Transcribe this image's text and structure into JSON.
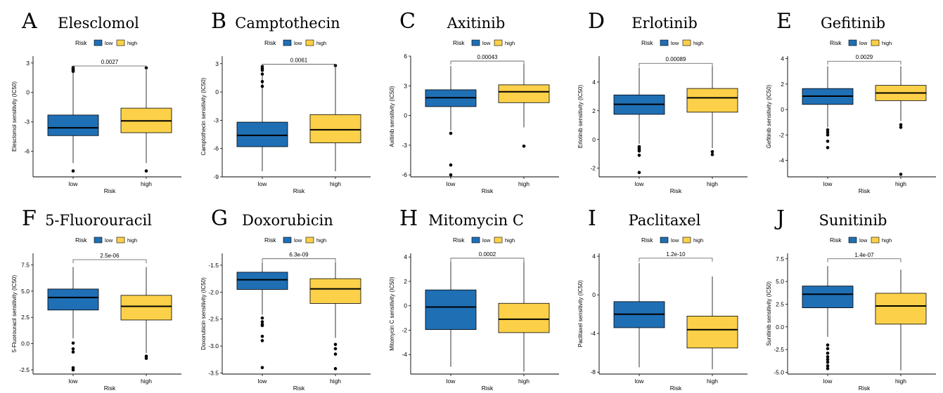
{
  "legend": {
    "title": "Risk",
    "labels": [
      "low",
      "high"
    ]
  },
  "colors": {
    "low": "#1f6fb5",
    "high": "#fcd149",
    "axis": "#000000",
    "bracket": "#555555"
  },
  "chart_data": [
    {
      "type": "box",
      "letter": "A",
      "title": "Elesclomol",
      "xlabel": "Risk",
      "ylabel": "Elesclomol sensitivity (IC50)",
      "categories": [
        "low",
        "high"
      ],
      "ylim": [
        -8.6,
        3.7
      ],
      "yticks": [
        -6,
        -3,
        0,
        3
      ],
      "ytick_labels": [
        "-6",
        "-3",
        "0",
        "3"
      ],
      "pvalue": "0.0027",
      "bracket_y": 2.7,
      "boxes": [
        {
          "whisker_low": -7.2,
          "q1": -4.4,
          "median": -3.6,
          "q3": -2.3,
          "whisker_high": 2.1,
          "outliers": [
            -8.0,
            2.15,
            2.3,
            2.4,
            2.55
          ]
        },
        {
          "whisker_low": -7.2,
          "q1": -4.1,
          "median": -2.9,
          "q3": -1.6,
          "whisker_high": 2.3,
          "outliers": [
            -8.0,
            2.5
          ]
        }
      ]
    },
    {
      "type": "box",
      "letter": "B",
      "title": "Camptothecin",
      "xlabel": "Risk",
      "ylabel": "Camptothecin sensitivity (IC50)",
      "categories": [
        "low",
        "high"
      ],
      "ylim": [
        -9.0,
        3.8
      ],
      "yticks": [
        -9,
        -6,
        -3,
        0,
        3
      ],
      "ytick_labels": [
        "-9",
        "-6",
        "-3",
        "0",
        "3"
      ],
      "pvalue": "0.0061",
      "bracket_y": 2.95,
      "boxes": [
        {
          "whisker_low": -8.4,
          "q1": -5.8,
          "median": -4.6,
          "q3": -3.2,
          "whisker_high": 2.0,
          "outliers": [
            0.6,
            1.1,
            1.9,
            2.3,
            2.5,
            2.7
          ]
        },
        {
          "whisker_low": -8.4,
          "q1": -5.4,
          "median": -4.0,
          "q3": -2.4,
          "whisker_high": 2.6,
          "outliers": [
            2.8
          ]
        }
      ]
    },
    {
      "type": "box",
      "letter": "C",
      "title": "Axitinib",
      "xlabel": "Risk",
      "ylabel": "Axitinib sensitivity (IC50)",
      "categories": [
        "low",
        "high"
      ],
      "ylim": [
        -6.2,
        6.0
      ],
      "yticks": [
        -6,
        -3,
        0,
        3,
        6
      ],
      "ytick_labels": [
        "-6",
        "-3",
        "0",
        "3",
        "6"
      ],
      "pvalue": "0.00043",
      "bracket_y": 5.5,
      "boxes": [
        {
          "whisker_low": -1.5,
          "q1": 0.9,
          "median": 1.8,
          "q3": 2.6,
          "whisker_high": 5.0,
          "outliers": [
            -1.8,
            -5.0,
            -6.0
          ]
        },
        {
          "whisker_low": -1.2,
          "q1": 1.3,
          "median": 2.4,
          "q3": 3.1,
          "whisker_high": 5.2,
          "outliers": [
            -3.1
          ]
        }
      ]
    },
    {
      "type": "box",
      "letter": "D",
      "title": "Erlotinib",
      "xlabel": "Risk",
      "ylabel": "Erlotinib sensitivity (IC50)",
      "categories": [
        "low",
        "high"
      ],
      "ylim": [
        -2.6,
        5.8
      ],
      "yticks": [
        -2,
        0,
        2,
        4
      ],
      "ytick_labels": [
        "-2",
        "0",
        "2",
        "4"
      ],
      "pvalue": "0.00089",
      "bracket_y": 5.3,
      "boxes": [
        {
          "whisker_low": -0.3,
          "q1": 1.75,
          "median": 2.45,
          "q3": 3.1,
          "whisker_high": 5.0,
          "outliers": [
            -0.5,
            -0.6,
            -0.7,
            -0.8,
            -1.1,
            -2.3
          ]
        },
        {
          "whisker_low": -0.6,
          "q1": 1.9,
          "median": 2.9,
          "q3": 3.55,
          "whisker_high": 5.1,
          "outliers": [
            -0.85,
            -1.05
          ]
        }
      ]
    },
    {
      "type": "box",
      "letter": "E",
      "title": "Gefitinib",
      "xlabel": "Risk",
      "ylabel": "Gefitinib sensitivity (IC50)",
      "categories": [
        "low",
        "high"
      ],
      "ylim": [
        -5.3,
        4.2
      ],
      "yticks": [
        -4,
        -2,
        0,
        2,
        4
      ],
      "ytick_labels": [
        "-4",
        "-2",
        "0",
        "2",
        "4"
      ],
      "pvalue": "0.0029",
      "bracket_y": 3.8,
      "boxes": [
        {
          "whisker_low": -1.4,
          "q1": 0.4,
          "median": 1.05,
          "q3": 1.65,
          "whisker_high": 3.4,
          "outliers": [
            -1.6,
            -1.8,
            -2.0,
            -2.5,
            -3.0
          ]
        },
        {
          "whisker_low": -0.9,
          "q1": 0.7,
          "median": 1.3,
          "q3": 1.9,
          "whisker_high": 3.4,
          "outliers": [
            -1.2,
            -1.4,
            -5.1
          ]
        }
      ]
    },
    {
      "type": "box",
      "letter": "F",
      "title": "5-Fluorouracil",
      "xlabel": "Risk",
      "ylabel": "5-Fluorouracil sensitivity (IC50)",
      "categories": [
        "low",
        "high"
      ],
      "ylim": [
        -2.9,
        8.6
      ],
      "yticks": [
        -2.5,
        0,
        2.5,
        5,
        7.5
      ],
      "ytick_labels": [
        "-2.5",
        "0.0",
        "2.5",
        "5.0",
        "7.5"
      ],
      "pvalue": "2.5e-06",
      "bracket_y": 8.0,
      "boxes": [
        {
          "whisker_low": 0.5,
          "q1": 3.2,
          "median": 4.4,
          "q3": 5.2,
          "whisker_high": 7.3,
          "outliers": [
            0.05,
            -0.5,
            -0.8,
            -2.3,
            -2.5
          ]
        },
        {
          "whisker_low": -0.9,
          "q1": 2.25,
          "median": 3.55,
          "q3": 4.6,
          "whisker_high": 7.3,
          "outliers": [
            -1.2,
            -1.4
          ]
        }
      ]
    },
    {
      "type": "box",
      "letter": "G",
      "title": "Doxorubicin",
      "xlabel": "Risk",
      "ylabel": "Doxorubicin sensitivity (IC50)",
      "categories": [
        "low",
        "high"
      ],
      "ylim": [
        -3.52,
        -1.28
      ],
      "yticks": [
        -3.5,
        -3,
        -2.5,
        -2,
        -1.5
      ],
      "ytick_labels": [
        "-3.5",
        "-3.0",
        "-2.5",
        "-2.0",
        "-1.5"
      ],
      "pvalue": "6.3e-09",
      "bracket_y": -1.38,
      "boxes": [
        {
          "whisker_low": -2.42,
          "q1": -1.95,
          "median": -1.77,
          "q3": -1.63,
          "whisker_high": -1.45,
          "outliers": [
            -2.48,
            -2.55,
            -2.6,
            -2.62,
            -2.82,
            -2.9,
            -3.4
          ]
        },
        {
          "whisker_low": -2.85,
          "q1": -2.21,
          "median": -1.94,
          "q3": -1.75,
          "whisker_high": -1.45,
          "outliers": [
            -2.97,
            -3.05,
            -3.15,
            -3.42
          ]
        }
      ]
    },
    {
      "type": "box",
      "letter": "H",
      "title": "Mitomycin C",
      "xlabel": "Risk",
      "ylabel": "Mitomycin C sensitivity (IC50)",
      "categories": [
        "low",
        "high"
      ],
      "ylim": [
        -5.6,
        4.3
      ],
      "yticks": [
        -4,
        -2,
        0,
        2,
        4
      ],
      "ytick_labels": [
        "-4",
        "-2",
        "0",
        "2",
        "4"
      ],
      "pvalue": "0.0002",
      "bracket_y": 3.9,
      "boxes": [
        {
          "whisker_low": -5.0,
          "q1": -1.95,
          "median": -0.1,
          "q3": 1.3,
          "whisker_high": 3.6,
          "outliers": []
        },
        {
          "whisker_low": -5.4,
          "q1": -2.2,
          "median": -1.1,
          "q3": 0.2,
          "whisker_high": 3.6,
          "outliers": []
        }
      ]
    },
    {
      "type": "box",
      "letter": "I",
      "title": "Paclitaxel",
      "xlabel": "Risk",
      "ylabel": "Paclitaxel sensitivity (IC50)",
      "categories": [
        "low",
        "high"
      ],
      "ylim": [
        -8.2,
        4.3
      ],
      "yticks": [
        -8,
        -4,
        0,
        4
      ],
      "ytick_labels": [
        "-8",
        "-4",
        "0",
        "4"
      ],
      "pvalue": "1.2e-10",
      "bracket_y": 3.8,
      "boxes": [
        {
          "whisker_low": -7.5,
          "q1": -3.4,
          "median": -2.0,
          "q3": -0.7,
          "whisker_high": 3.3,
          "outliers": []
        },
        {
          "whisker_low": -7.7,
          "q1": -5.5,
          "median": -3.6,
          "q3": -2.2,
          "whisker_high": 1.9,
          "outliers": []
        }
      ]
    },
    {
      "type": "box",
      "letter": "J",
      "title": "Sunitinib",
      "xlabel": "Risk",
      "ylabel": "Sunitinib sensitivity (IC50)",
      "categories": [
        "low",
        "high"
      ],
      "ylim": [
        -5.2,
        8.1
      ],
      "yticks": [
        -5,
        -2.5,
        0,
        2.5,
        5,
        7.5
      ],
      "ytick_labels": [
        "-5.0",
        "-2.5",
        "0.0",
        "2.5",
        "5.0",
        "7.5"
      ],
      "pvalue": "1.4e-07",
      "bracket_y": 7.5,
      "boxes": [
        {
          "whisker_low": -1.1,
          "q1": 2.1,
          "median": 3.6,
          "q3": 4.5,
          "whisker_high": 6.7,
          "outliers": [
            -2.0,
            -2.4,
            -2.9,
            -3.3,
            -3.6,
            -3.9,
            -4.3,
            -4.6
          ]
        },
        {
          "whisker_low": -4.8,
          "q1": 0.3,
          "median": 2.3,
          "q3": 3.7,
          "whisker_high": 6.3,
          "outliers": []
        }
      ]
    }
  ]
}
